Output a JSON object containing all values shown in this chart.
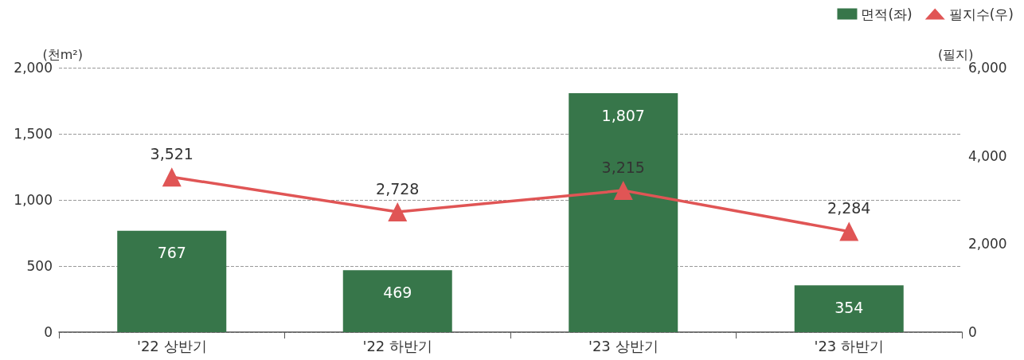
{
  "chart_data": {
    "type": "bar",
    "ylabel": "(천m²)",
    "y2label": "(필지)",
    "categories": [
      "'22 상반기",
      "'22 하반기",
      "'23 상반기",
      "'23 하반기"
    ],
    "series": [
      {
        "name": "면적(좌)",
        "color": "#37764a",
        "values": [
          767,
          469,
          1807,
          354
        ],
        "value_labels": [
          "767",
          "469",
          "1,807",
          "354"
        ]
      },
      {
        "name": "필지수(우)",
        "type": "line",
        "axis": "y2",
        "color": "#e05555",
        "marker": "triangle",
        "values": [
          3521,
          2728,
          3215,
          2284
        ],
        "value_labels": [
          "3,521",
          "2,728",
          "3,215",
          "2,284"
        ]
      }
    ],
    "ylim": [
      0,
      2000
    ],
    "yticks": [
      0,
      {
        "value": 500,
        "label": "500"
      },
      {
        "value": 1000,
        "label": "1,000"
      },
      {
        "value": 1500,
        "label": "1,500"
      },
      {
        "value": 2000,
        "label": "2,000"
      }
    ],
    "y2lim": [
      0,
      6000
    ],
    "y2ticks": [
      0,
      {
        "value": 2000,
        "label": "2,000"
      },
      {
        "value": 4000,
        "label": "4,000"
      },
      {
        "value": 6000,
        "label": "6,000"
      }
    ],
    "grid": "y",
    "legend": "top right"
  }
}
